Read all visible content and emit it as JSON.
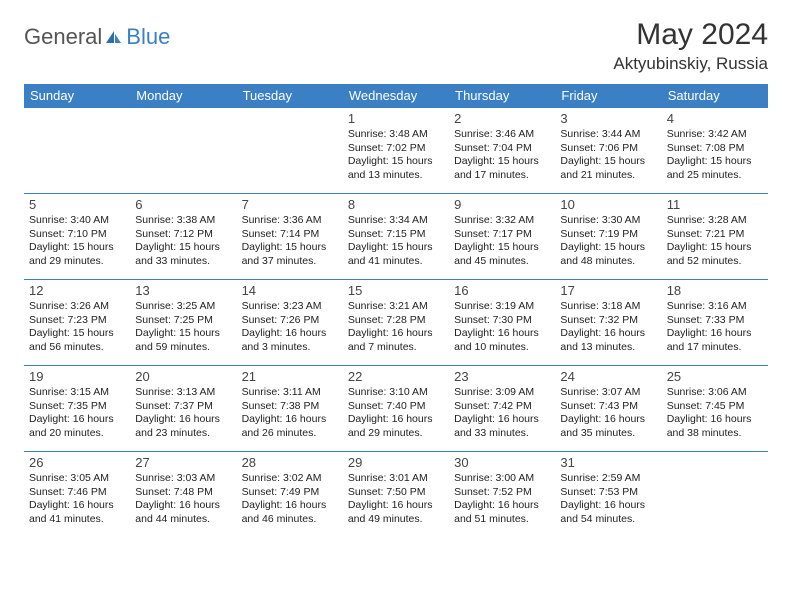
{
  "logo": {
    "part1": "General",
    "part2": "Blue"
  },
  "title": "May 2024",
  "location": "Aktyubinskiy, Russia",
  "colors": {
    "header_bg": "#3b7fc4",
    "header_text": "#ffffff",
    "border": "#3b7fc4",
    "text": "#222222",
    "daynum": "#444444",
    "logo_gray": "#555555",
    "logo_blue": "#3b7fc4"
  },
  "dayNames": [
    "Sunday",
    "Monday",
    "Tuesday",
    "Wednesday",
    "Thursday",
    "Friday",
    "Saturday"
  ],
  "weeks": [
    [
      null,
      null,
      null,
      {
        "n": "1",
        "sr": "3:48 AM",
        "ss": "7:02 PM",
        "dl": "15 hours and 13 minutes."
      },
      {
        "n": "2",
        "sr": "3:46 AM",
        "ss": "7:04 PM",
        "dl": "15 hours and 17 minutes."
      },
      {
        "n": "3",
        "sr": "3:44 AM",
        "ss": "7:06 PM",
        "dl": "15 hours and 21 minutes."
      },
      {
        "n": "4",
        "sr": "3:42 AM",
        "ss": "7:08 PM",
        "dl": "15 hours and 25 minutes."
      }
    ],
    [
      {
        "n": "5",
        "sr": "3:40 AM",
        "ss": "7:10 PM",
        "dl": "15 hours and 29 minutes."
      },
      {
        "n": "6",
        "sr": "3:38 AM",
        "ss": "7:12 PM",
        "dl": "15 hours and 33 minutes."
      },
      {
        "n": "7",
        "sr": "3:36 AM",
        "ss": "7:14 PM",
        "dl": "15 hours and 37 minutes."
      },
      {
        "n": "8",
        "sr": "3:34 AM",
        "ss": "7:15 PM",
        "dl": "15 hours and 41 minutes."
      },
      {
        "n": "9",
        "sr": "3:32 AM",
        "ss": "7:17 PM",
        "dl": "15 hours and 45 minutes."
      },
      {
        "n": "10",
        "sr": "3:30 AM",
        "ss": "7:19 PM",
        "dl": "15 hours and 48 minutes."
      },
      {
        "n": "11",
        "sr": "3:28 AM",
        "ss": "7:21 PM",
        "dl": "15 hours and 52 minutes."
      }
    ],
    [
      {
        "n": "12",
        "sr": "3:26 AM",
        "ss": "7:23 PM",
        "dl": "15 hours and 56 minutes."
      },
      {
        "n": "13",
        "sr": "3:25 AM",
        "ss": "7:25 PM",
        "dl": "15 hours and 59 minutes."
      },
      {
        "n": "14",
        "sr": "3:23 AM",
        "ss": "7:26 PM",
        "dl": "16 hours and 3 minutes."
      },
      {
        "n": "15",
        "sr": "3:21 AM",
        "ss": "7:28 PM",
        "dl": "16 hours and 7 minutes."
      },
      {
        "n": "16",
        "sr": "3:19 AM",
        "ss": "7:30 PM",
        "dl": "16 hours and 10 minutes."
      },
      {
        "n": "17",
        "sr": "3:18 AM",
        "ss": "7:32 PM",
        "dl": "16 hours and 13 minutes."
      },
      {
        "n": "18",
        "sr": "3:16 AM",
        "ss": "7:33 PM",
        "dl": "16 hours and 17 minutes."
      }
    ],
    [
      {
        "n": "19",
        "sr": "3:15 AM",
        "ss": "7:35 PM",
        "dl": "16 hours and 20 minutes."
      },
      {
        "n": "20",
        "sr": "3:13 AM",
        "ss": "7:37 PM",
        "dl": "16 hours and 23 minutes."
      },
      {
        "n": "21",
        "sr": "3:11 AM",
        "ss": "7:38 PM",
        "dl": "16 hours and 26 minutes."
      },
      {
        "n": "22",
        "sr": "3:10 AM",
        "ss": "7:40 PM",
        "dl": "16 hours and 29 minutes."
      },
      {
        "n": "23",
        "sr": "3:09 AM",
        "ss": "7:42 PM",
        "dl": "16 hours and 33 minutes."
      },
      {
        "n": "24",
        "sr": "3:07 AM",
        "ss": "7:43 PM",
        "dl": "16 hours and 35 minutes."
      },
      {
        "n": "25",
        "sr": "3:06 AM",
        "ss": "7:45 PM",
        "dl": "16 hours and 38 minutes."
      }
    ],
    [
      {
        "n": "26",
        "sr": "3:05 AM",
        "ss": "7:46 PM",
        "dl": "16 hours and 41 minutes."
      },
      {
        "n": "27",
        "sr": "3:03 AM",
        "ss": "7:48 PM",
        "dl": "16 hours and 44 minutes."
      },
      {
        "n": "28",
        "sr": "3:02 AM",
        "ss": "7:49 PM",
        "dl": "16 hours and 46 minutes."
      },
      {
        "n": "29",
        "sr": "3:01 AM",
        "ss": "7:50 PM",
        "dl": "16 hours and 49 minutes."
      },
      {
        "n": "30",
        "sr": "3:00 AM",
        "ss": "7:52 PM",
        "dl": "16 hours and 51 minutes."
      },
      {
        "n": "31",
        "sr": "2:59 AM",
        "ss": "7:53 PM",
        "dl": "16 hours and 54 minutes."
      },
      null
    ]
  ],
  "labels": {
    "sunrise": "Sunrise: ",
    "sunset": "Sunset: ",
    "daylight": "Daylight: "
  }
}
